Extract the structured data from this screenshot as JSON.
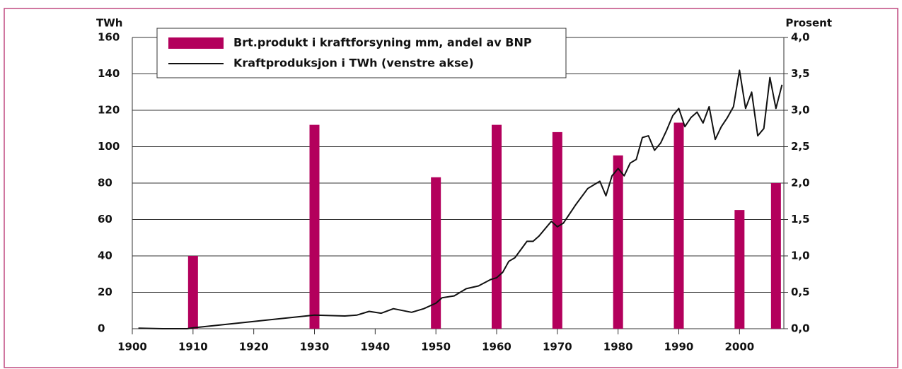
{
  "chart_data": {
    "type": "combo",
    "ylabel": "TWh",
    "y2label": "Prosent",
    "xlim": [
      1900,
      2007.3
    ],
    "xticks": [
      1900,
      1910,
      1920,
      1930,
      1940,
      1950,
      1960,
      1970,
      1980,
      1990,
      2000
    ],
    "ylim": [
      0,
      160
    ],
    "yticks": [
      0,
      20,
      40,
      60,
      80,
      100,
      120,
      140,
      160
    ],
    "y2lim": [
      0,
      4
    ],
    "y2ticks": [
      {
        "value": 0,
        "label": "0,0"
      },
      {
        "value": 0.5,
        "label": "0,5"
      },
      {
        "value": 1,
        "label": "1,0"
      },
      {
        "value": 1.5,
        "label": "1,5"
      },
      {
        "value": 2,
        "label": "2,0"
      },
      {
        "value": 2.5,
        "label": "2,5"
      },
      {
        "value": 3,
        "label": "3,0"
      },
      {
        "value": 3.5,
        "label": "3,5"
      },
      {
        "value": 4,
        "label": "4,0"
      }
    ],
    "grid": true,
    "legend": "top-left",
    "series": [
      {
        "name": "Brt.produkt i kraftforsyning mm, andel av BNP",
        "type": "bar",
        "axis": "y2",
        "color": "#b3005c",
        "x": [
          1910,
          1930,
          1950,
          1960,
          1970,
          1980,
          1990,
          2000,
          2006
        ],
        "values": [
          1.0,
          2.8,
          2.08,
          2.8,
          2.7,
          2.38,
          2.83,
          1.63,
          2.0
        ]
      },
      {
        "name": "Kraftproduksjon i TWh (venstre akse)",
        "type": "line",
        "color": "#111111",
        "x": [
          1901,
          1905,
          1909,
          1910,
          1920,
          1930,
          1935,
          1937,
          1939,
          1941,
          1943,
          1946,
          1948,
          1950,
          1951,
          1953,
          1955,
          1957,
          1959,
          1960,
          1961,
          1962,
          1963,
          1965,
          1966,
          1967,
          1969,
          1970,
          1971,
          1973,
          1975,
          1977,
          1978,
          1979,
          1980,
          1981,
          1982,
          1983,
          1984,
          1985,
          1986,
          1987,
          1988,
          1989,
          1990,
          1991,
          1992,
          1993,
          1994,
          1995,
          1996,
          1997,
          1998,
          1999,
          2000,
          2001,
          2002,
          2003,
          2004,
          2005,
          2006,
          2007
        ],
        "values": [
          0.3,
          0,
          0,
          0.5,
          4,
          7.5,
          7,
          7.5,
          9.5,
          8.5,
          11,
          9,
          11,
          14,
          17,
          18,
          22,
          23.5,
          27,
          28,
          31,
          37,
          39,
          48,
          48,
          51,
          59,
          56,
          58,
          68,
          77,
          81,
          73,
          84,
          88,
          84,
          91,
          93,
          105,
          106,
          98,
          102,
          109,
          117,
          121,
          111,
          116,
          119,
          113,
          122,
          104,
          111,
          116,
          122,
          142,
          121,
          130,
          106,
          110,
          138,
          121,
          134
        ]
      }
    ]
  }
}
